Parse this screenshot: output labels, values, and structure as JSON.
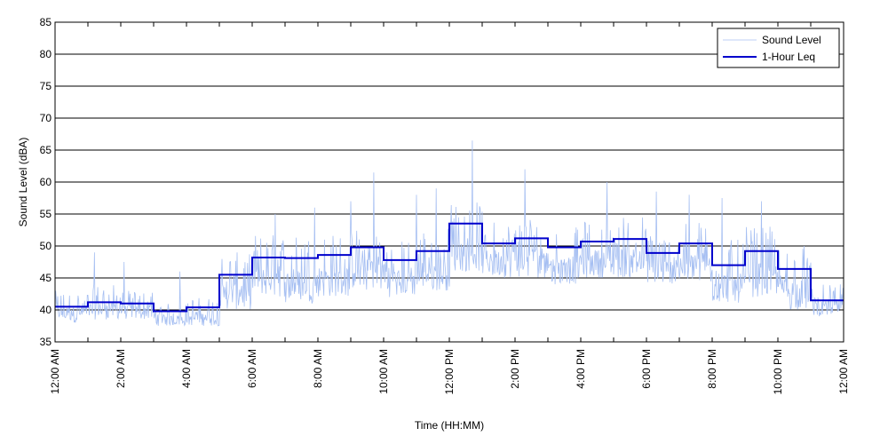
{
  "chart_data": {
    "type": "line",
    "title": "",
    "xlabel": "Time (HH:MM)",
    "ylabel": "Sound Level (dBA)",
    "ylim": [
      35,
      85
    ],
    "xlim_hours": [
      0,
      24
    ],
    "yticks": [
      35,
      40,
      45,
      50,
      55,
      60,
      65,
      70,
      75,
      80,
      85
    ],
    "xticks": [
      {
        "hour": 0,
        "label": "12:00 AM"
      },
      {
        "hour": 2,
        "label": "2:00 AM"
      },
      {
        "hour": 4,
        "label": "4:00 AM"
      },
      {
        "hour": 6,
        "label": "6:00 AM"
      },
      {
        "hour": 8,
        "label": "8:00 AM"
      },
      {
        "hour": 10,
        "label": "10:00 AM"
      },
      {
        "hour": 12,
        "label": "12:00 PM"
      },
      {
        "hour": 14,
        "label": "2:00 PM"
      },
      {
        "hour": 16,
        "label": "4:00 PM"
      },
      {
        "hour": 18,
        "label": "6:00 PM"
      },
      {
        "hour": 20,
        "label": "8:00 PM"
      },
      {
        "hour": 22,
        "label": "10:00 PM"
      },
      {
        "hour": 24,
        "label": "12:00 AM"
      }
    ],
    "grid": "horizontal",
    "legend_position": "top-right",
    "series": [
      {
        "name": "Sound Level",
        "color": "#a6bff2",
        "hourly_typical_range": [
          [
            38,
            43
          ],
          [
            38.5,
            44
          ],
          [
            38.5,
            43
          ],
          [
            37.5,
            41
          ],
          [
            37.5,
            42
          ],
          [
            40,
            49
          ],
          [
            42,
            52
          ],
          [
            41,
            52
          ],
          [
            42,
            52
          ],
          [
            43,
            53
          ],
          [
            42,
            51
          ],
          [
            43,
            53
          ],
          [
            46,
            57
          ],
          [
            45,
            54
          ],
          [
            45,
            55
          ],
          [
            44,
            53
          ],
          [
            45,
            54
          ],
          [
            45,
            55
          ],
          [
            44,
            52
          ],
          [
            44,
            54
          ],
          [
            41,
            51
          ],
          [
            42,
            53
          ],
          [
            40,
            50
          ],
          [
            39,
            44
          ]
        ],
        "peaks": [
          {
            "hour": 1.2,
            "value": 49
          },
          {
            "hour": 2.1,
            "value": 47.5
          },
          {
            "hour": 3.8,
            "value": 46
          },
          {
            "hour": 6.7,
            "value": 55
          },
          {
            "hour": 7.9,
            "value": 56
          },
          {
            "hour": 9.0,
            "value": 57
          },
          {
            "hour": 9.7,
            "value": 61.5
          },
          {
            "hour": 11.0,
            "value": 58
          },
          {
            "hour": 11.6,
            "value": 59
          },
          {
            "hour": 12.7,
            "value": 66.5
          },
          {
            "hour": 14.3,
            "value": 62
          },
          {
            "hour": 16.8,
            "value": 60
          },
          {
            "hour": 18.3,
            "value": 58.5
          },
          {
            "hour": 19.3,
            "value": 58
          },
          {
            "hour": 20.3,
            "value": 57.5
          },
          {
            "hour": 21.5,
            "value": 57
          },
          {
            "hour": 22.8,
            "value": 50
          }
        ]
      },
      {
        "name": "1-Hour Leq",
        "color": "#0000cc",
        "hours": [
          0,
          1,
          2,
          3,
          4,
          5,
          6,
          7,
          8,
          9,
          10,
          11,
          12,
          13,
          14,
          15,
          16,
          17,
          18,
          19,
          20,
          21,
          22,
          23
        ],
        "values": [
          40.5,
          41.2,
          41.0,
          39.8,
          40.4,
          45.5,
          48.2,
          48.1,
          48.6,
          49.8,
          47.8,
          49.2,
          53.5,
          50.4,
          51.2,
          49.8,
          50.7,
          51.1,
          48.9,
          50.4,
          47.0,
          49.2,
          46.4,
          41.5
        ]
      }
    ]
  }
}
